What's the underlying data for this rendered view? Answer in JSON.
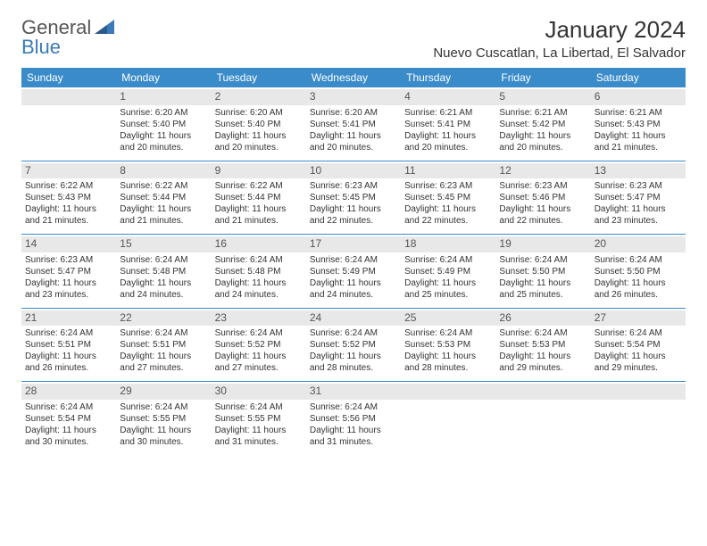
{
  "logo": {
    "text1": "General",
    "text2": "Blue"
  },
  "title": "January 2024",
  "location": "Nuevo Cuscatlan, La Libertad, El Salvador",
  "colors": {
    "header_bg": "#3a8bc9",
    "header_text": "#ffffff",
    "day_bg": "#e8e8e8",
    "border": "#3a8bc9"
  },
  "weekdays": [
    "Sunday",
    "Monday",
    "Tuesday",
    "Wednesday",
    "Thursday",
    "Friday",
    "Saturday"
  ],
  "weeks": [
    [
      {
        "n": "",
        "sr": "",
        "ss": "",
        "dl": ""
      },
      {
        "n": "1",
        "sr": "Sunrise: 6:20 AM",
        "ss": "Sunset: 5:40 PM",
        "dl": "Daylight: 11 hours and 20 minutes."
      },
      {
        "n": "2",
        "sr": "Sunrise: 6:20 AM",
        "ss": "Sunset: 5:40 PM",
        "dl": "Daylight: 11 hours and 20 minutes."
      },
      {
        "n": "3",
        "sr": "Sunrise: 6:20 AM",
        "ss": "Sunset: 5:41 PM",
        "dl": "Daylight: 11 hours and 20 minutes."
      },
      {
        "n": "4",
        "sr": "Sunrise: 6:21 AM",
        "ss": "Sunset: 5:41 PM",
        "dl": "Daylight: 11 hours and 20 minutes."
      },
      {
        "n": "5",
        "sr": "Sunrise: 6:21 AM",
        "ss": "Sunset: 5:42 PM",
        "dl": "Daylight: 11 hours and 20 minutes."
      },
      {
        "n": "6",
        "sr": "Sunrise: 6:21 AM",
        "ss": "Sunset: 5:43 PM",
        "dl": "Daylight: 11 hours and 21 minutes."
      }
    ],
    [
      {
        "n": "7",
        "sr": "Sunrise: 6:22 AM",
        "ss": "Sunset: 5:43 PM",
        "dl": "Daylight: 11 hours and 21 minutes."
      },
      {
        "n": "8",
        "sr": "Sunrise: 6:22 AM",
        "ss": "Sunset: 5:44 PM",
        "dl": "Daylight: 11 hours and 21 minutes."
      },
      {
        "n": "9",
        "sr": "Sunrise: 6:22 AM",
        "ss": "Sunset: 5:44 PM",
        "dl": "Daylight: 11 hours and 21 minutes."
      },
      {
        "n": "10",
        "sr": "Sunrise: 6:23 AM",
        "ss": "Sunset: 5:45 PM",
        "dl": "Daylight: 11 hours and 22 minutes."
      },
      {
        "n": "11",
        "sr": "Sunrise: 6:23 AM",
        "ss": "Sunset: 5:45 PM",
        "dl": "Daylight: 11 hours and 22 minutes."
      },
      {
        "n": "12",
        "sr": "Sunrise: 6:23 AM",
        "ss": "Sunset: 5:46 PM",
        "dl": "Daylight: 11 hours and 22 minutes."
      },
      {
        "n": "13",
        "sr": "Sunrise: 6:23 AM",
        "ss": "Sunset: 5:47 PM",
        "dl": "Daylight: 11 hours and 23 minutes."
      }
    ],
    [
      {
        "n": "14",
        "sr": "Sunrise: 6:23 AM",
        "ss": "Sunset: 5:47 PM",
        "dl": "Daylight: 11 hours and 23 minutes."
      },
      {
        "n": "15",
        "sr": "Sunrise: 6:24 AM",
        "ss": "Sunset: 5:48 PM",
        "dl": "Daylight: 11 hours and 24 minutes."
      },
      {
        "n": "16",
        "sr": "Sunrise: 6:24 AM",
        "ss": "Sunset: 5:48 PM",
        "dl": "Daylight: 11 hours and 24 minutes."
      },
      {
        "n": "17",
        "sr": "Sunrise: 6:24 AM",
        "ss": "Sunset: 5:49 PM",
        "dl": "Daylight: 11 hours and 24 minutes."
      },
      {
        "n": "18",
        "sr": "Sunrise: 6:24 AM",
        "ss": "Sunset: 5:49 PM",
        "dl": "Daylight: 11 hours and 25 minutes."
      },
      {
        "n": "19",
        "sr": "Sunrise: 6:24 AM",
        "ss": "Sunset: 5:50 PM",
        "dl": "Daylight: 11 hours and 25 minutes."
      },
      {
        "n": "20",
        "sr": "Sunrise: 6:24 AM",
        "ss": "Sunset: 5:50 PM",
        "dl": "Daylight: 11 hours and 26 minutes."
      }
    ],
    [
      {
        "n": "21",
        "sr": "Sunrise: 6:24 AM",
        "ss": "Sunset: 5:51 PM",
        "dl": "Daylight: 11 hours and 26 minutes."
      },
      {
        "n": "22",
        "sr": "Sunrise: 6:24 AM",
        "ss": "Sunset: 5:51 PM",
        "dl": "Daylight: 11 hours and 27 minutes."
      },
      {
        "n": "23",
        "sr": "Sunrise: 6:24 AM",
        "ss": "Sunset: 5:52 PM",
        "dl": "Daylight: 11 hours and 27 minutes."
      },
      {
        "n": "24",
        "sr": "Sunrise: 6:24 AM",
        "ss": "Sunset: 5:52 PM",
        "dl": "Daylight: 11 hours and 28 minutes."
      },
      {
        "n": "25",
        "sr": "Sunrise: 6:24 AM",
        "ss": "Sunset: 5:53 PM",
        "dl": "Daylight: 11 hours and 28 minutes."
      },
      {
        "n": "26",
        "sr": "Sunrise: 6:24 AM",
        "ss": "Sunset: 5:53 PM",
        "dl": "Daylight: 11 hours and 29 minutes."
      },
      {
        "n": "27",
        "sr": "Sunrise: 6:24 AM",
        "ss": "Sunset: 5:54 PM",
        "dl": "Daylight: 11 hours and 29 minutes."
      }
    ],
    [
      {
        "n": "28",
        "sr": "Sunrise: 6:24 AM",
        "ss": "Sunset: 5:54 PM",
        "dl": "Daylight: 11 hours and 30 minutes."
      },
      {
        "n": "29",
        "sr": "Sunrise: 6:24 AM",
        "ss": "Sunset: 5:55 PM",
        "dl": "Daylight: 11 hours and 30 minutes."
      },
      {
        "n": "30",
        "sr": "Sunrise: 6:24 AM",
        "ss": "Sunset: 5:55 PM",
        "dl": "Daylight: 11 hours and 31 minutes."
      },
      {
        "n": "31",
        "sr": "Sunrise: 6:24 AM",
        "ss": "Sunset: 5:56 PM",
        "dl": "Daylight: 11 hours and 31 minutes."
      },
      {
        "n": "",
        "sr": "",
        "ss": "",
        "dl": ""
      },
      {
        "n": "",
        "sr": "",
        "ss": "",
        "dl": ""
      },
      {
        "n": "",
        "sr": "",
        "ss": "",
        "dl": ""
      }
    ]
  ]
}
